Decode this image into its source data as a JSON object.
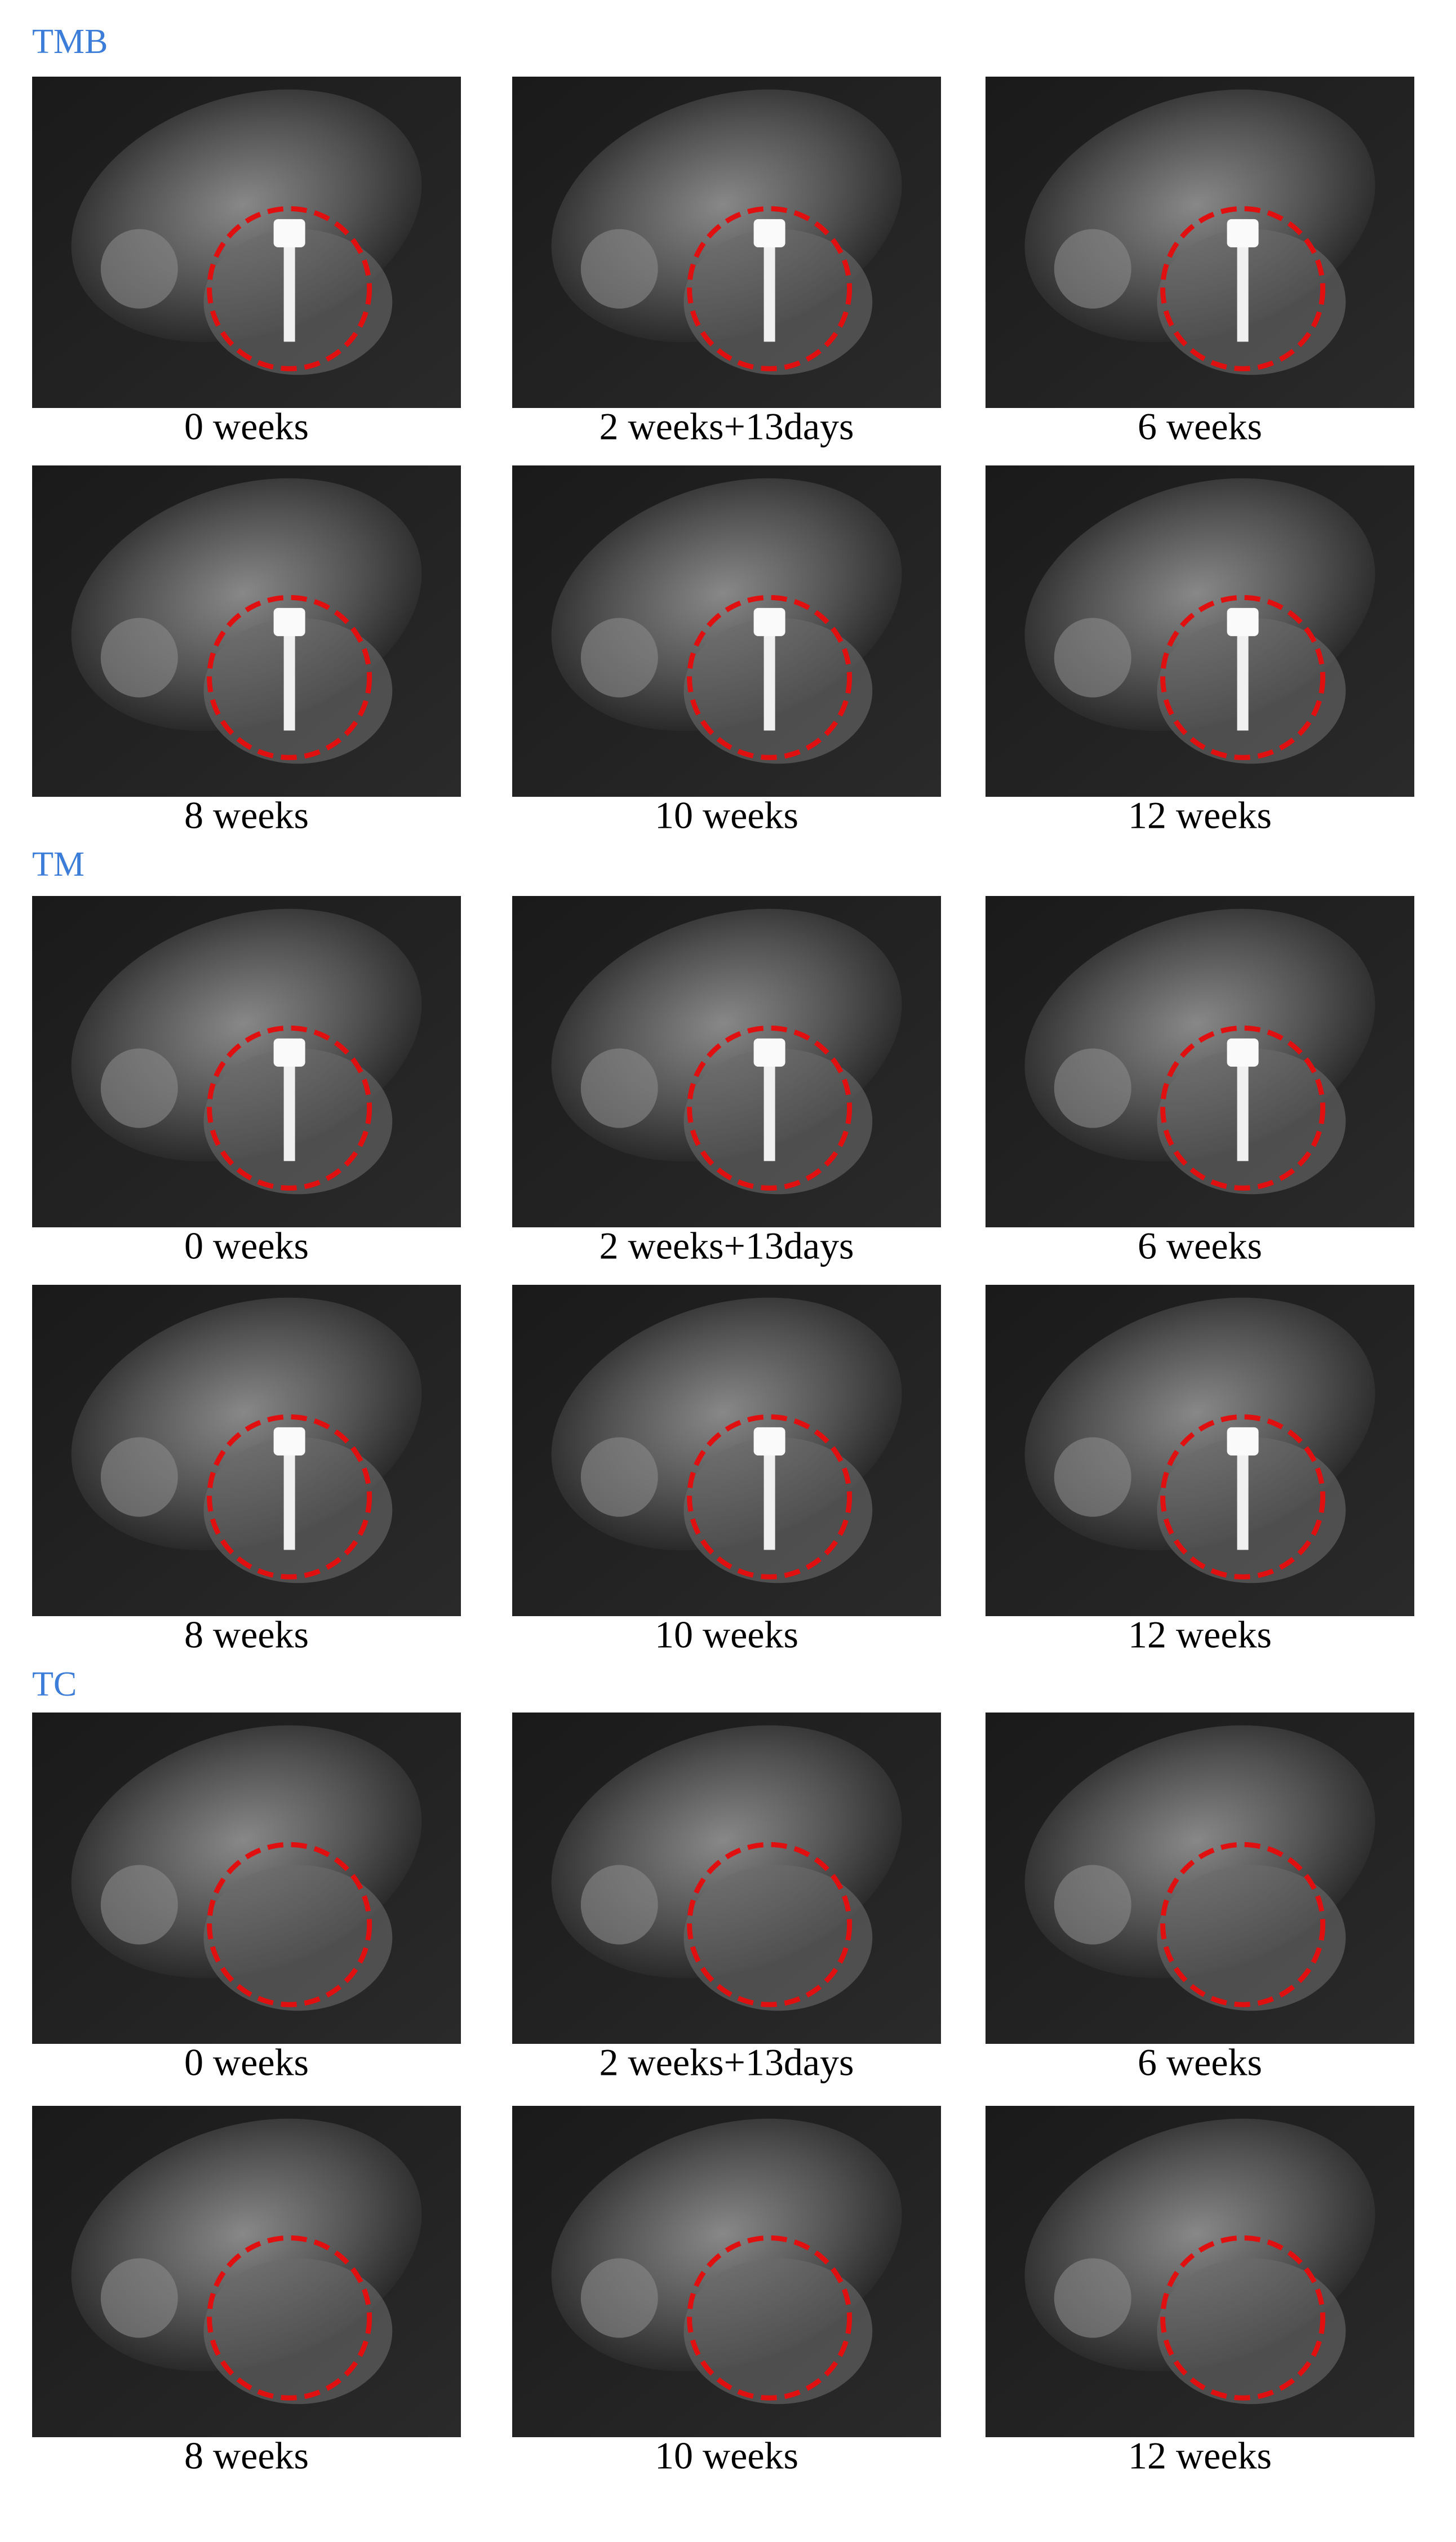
{
  "groups": [
    {
      "title": "TMB",
      "panels": [
        "0 weeks",
        "2 weeks+13days",
        "6 weeks",
        "8 weeks",
        "10 weeks",
        "12 weeks"
      ]
    },
    {
      "title": "TM",
      "panels": [
        "0 weeks",
        "2 weeks+13days",
        "6 weeks",
        "8 weeks",
        "10 weeks",
        "12 weeks"
      ]
    },
    {
      "title": "TC",
      "panels": [
        "0 weeks",
        "2 weeks+13days",
        "6 weeks",
        "8 weeks",
        "10 weeks",
        "12 weeks"
      ]
    }
  ]
}
